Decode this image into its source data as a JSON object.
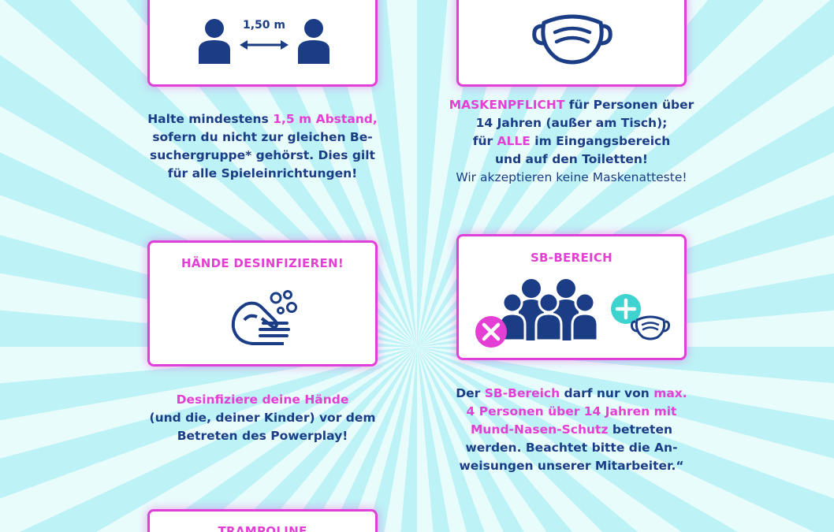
{
  "colors": {
    "accent": "#e43fd4",
    "navy": "#1b3d86",
    "teal": "#3fd3cf",
    "background": "#c8f3f6"
  },
  "distance": {
    "icon_label": "1,50 m",
    "line1_a": "Halte mindestens ",
    "line1_hl": "1,5 m Abstand,",
    "line2": "sofern du nicht zur gleichen Be-",
    "line3": "suchergruppe* gehörst. Dies gilt",
    "line4": "für alle Spieleinrichtungen!"
  },
  "mask": {
    "line1_hl": "MASKENPFLICHT",
    "line1_b": " für Personen über",
    "line2": "14 Jahren (außer am Tisch);",
    "line3_a": "für ",
    "line3_hl": "ALLE",
    "line3_b": " im Eingangsbereich",
    "line4": "und auf den Toiletten!",
    "line5": "Wir akzeptieren keine Maskenatteste!"
  },
  "hands": {
    "title": "HÄNDE DESINFIZIEREN!",
    "line1_hl": "Desinfiziere deine  Hände",
    "line2": "(und die, deiner Kinder) vor dem",
    "line3": "Betreten des Powerplay!"
  },
  "sb": {
    "title": "SB-BEREICH",
    "line1_a": "Der ",
    "line1_hl1": "SB-Bereich",
    "line1_b": " darf nur von ",
    "line1_hl2": "max.",
    "line2_hl": "4 Personen über 14 Jahren mit",
    "line3_hl": "Mund-Nasen-Schutz",
    "line3_b": " betreten",
    "line4": "werden. Beachtet bitte die An-",
    "line5": "weisungen unserer Mitarbeiter.“"
  },
  "trampoline": {
    "title": "TRAMPOLINE"
  }
}
